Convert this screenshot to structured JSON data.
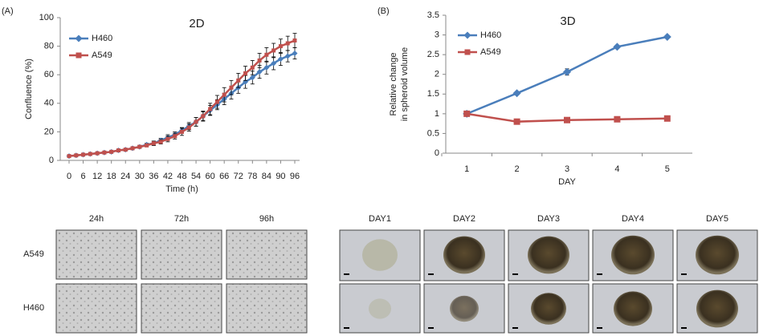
{
  "panels": [
    "(A)",
    "(B)"
  ],
  "chart_data": [
    {
      "type": "line",
      "title": "2D",
      "xlabel": "Time (h)",
      "ylabel": "Confluence (%)",
      "x": [
        0,
        3,
        6,
        9,
        12,
        15,
        18,
        21,
        24,
        27,
        30,
        33,
        36,
        39,
        42,
        45,
        48,
        51,
        54,
        57,
        60,
        63,
        66,
        69,
        72,
        75,
        78,
        81,
        84,
        87,
        90,
        93,
        96
      ],
      "xlim": [
        0,
        96
      ],
      "xticks": [
        0,
        6,
        12,
        18,
        24,
        30,
        36,
        42,
        48,
        54,
        60,
        66,
        72,
        78,
        84,
        90,
        96
      ],
      "ylim": [
        0,
        100
      ],
      "yticks": [
        0,
        20,
        40,
        60,
        80,
        100
      ],
      "legend": "upper-left",
      "series": [
        {
          "name": "H460",
          "color": "#4a7ebb",
          "marker": "diamond",
          "values": [
            3,
            3.5,
            4,
            4.5,
            5,
            5.5,
            6,
            7,
            7.5,
            8.5,
            9.5,
            11,
            12,
            14,
            16,
            18,
            21,
            24,
            27,
            31,
            35,
            39,
            43,
            47,
            51,
            55,
            58,
            62,
            65,
            68,
            71,
            73,
            75
          ],
          "errors": [
            0.5,
            0.5,
            0.5,
            0.5,
            0.5,
            0.5,
            0.5,
            0.5,
            0.5,
            1,
            1,
            1,
            1.5,
            1.5,
            2,
            2,
            2,
            2.5,
            3,
            3,
            3.5,
            3.5,
            4,
            4,
            4,
            4.5,
            4.5,
            4.5,
            4.5,
            4.5,
            4.5,
            4,
            4
          ]
        },
        {
          "name": "A549",
          "color": "#c0504d",
          "marker": "square",
          "values": [
            3,
            3.5,
            4,
            4.5,
            5,
            5.5,
            6,
            7,
            7.5,
            8.5,
            9.5,
            10.5,
            12,
            13,
            15,
            17,
            20,
            23,
            27,
            31,
            36,
            41,
            46,
            51,
            56,
            61,
            65,
            70,
            74,
            77,
            80,
            82,
            84
          ],
          "errors": [
            0.5,
            0.5,
            0.5,
            0.5,
            0.5,
            0.5,
            0.5,
            0.5,
            0.5,
            1,
            1,
            1,
            1.5,
            1.5,
            2,
            2,
            2.5,
            2.5,
            3,
            3.5,
            4,
            4.5,
            5,
            5,
            5,
            5,
            5,
            5,
            5,
            5,
            5,
            5,
            5
          ]
        }
      ]
    },
    {
      "type": "line",
      "title": "3D",
      "xlabel": "DAY",
      "ylabel": [
        "Relative change",
        "in spheroid volume"
      ],
      "categories": [
        "1",
        "2",
        "3",
        "4",
        "5"
      ],
      "ylim": [
        0,
        3.5
      ],
      "yticks": [
        0,
        0.5,
        1,
        1.5,
        2,
        2.5,
        3,
        3.5
      ],
      "legend": "upper-left",
      "series": [
        {
          "name": "H460",
          "color": "#4a7ebb",
          "marker": "diamond",
          "values": [
            1,
            1.52,
            2.06,
            2.7,
            2.95
          ],
          "errors": [
            0.05,
            0.04,
            0.08,
            0.03,
            0.03
          ]
        },
        {
          "name": "A549",
          "color": "#c0504d",
          "marker": "square",
          "values": [
            1,
            0.8,
            0.84,
            0.86,
            0.88
          ],
          "errors": [
            0.02,
            0.02,
            0.02,
            0.02,
            0.02
          ]
        }
      ]
    }
  ],
  "image_grids": [
    {
      "columns": [
        "24h",
        "72h",
        "96h"
      ],
      "rows": [
        "A549",
        "H460"
      ]
    },
    {
      "columns": [
        "DAY1",
        "DAY2",
        "DAY3",
        "DAY4",
        "DAY5"
      ]
    }
  ]
}
